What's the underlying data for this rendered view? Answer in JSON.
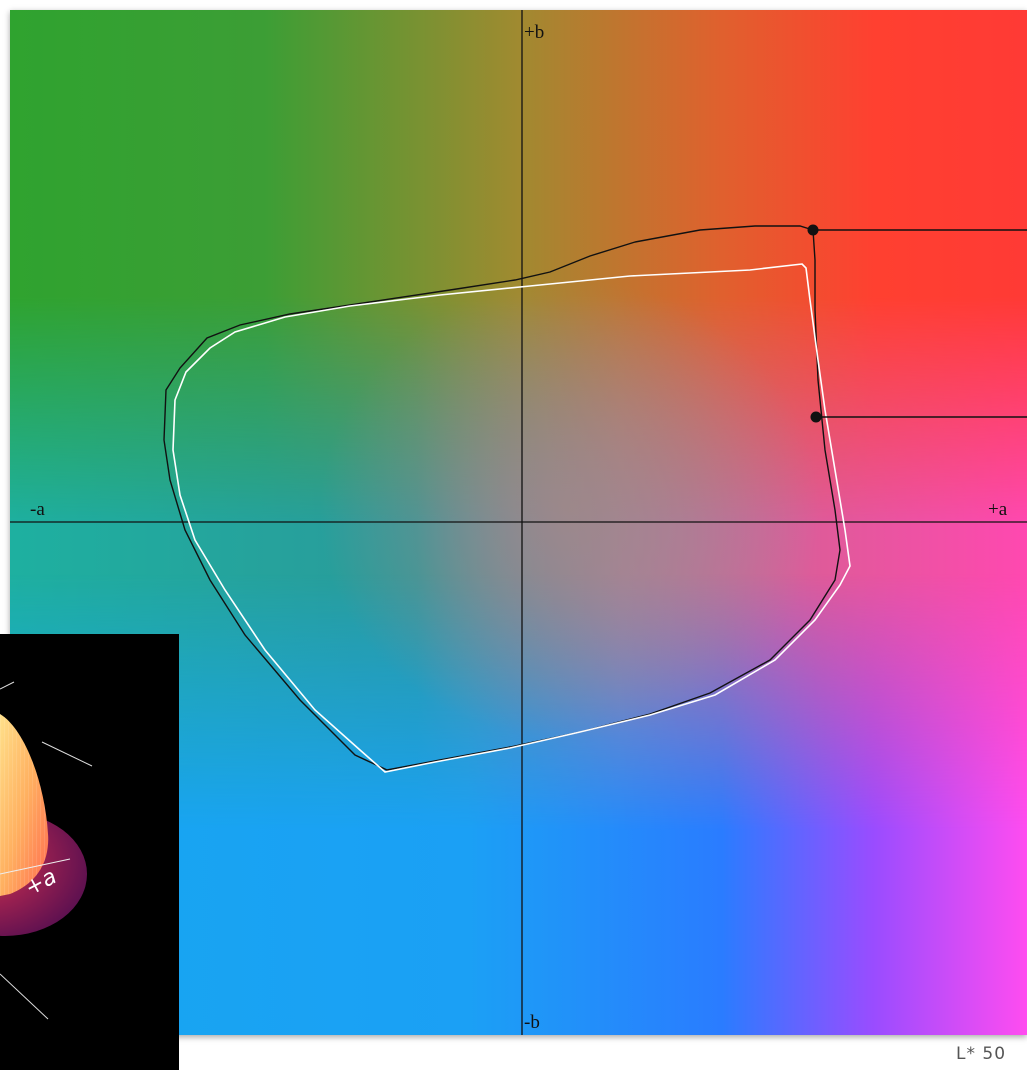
{
  "axes": {
    "plus_b": "+b",
    "minus_b": "-b",
    "minus_a": "-a",
    "plus_a": "+a"
  },
  "inset": {
    "axis_label": "+a"
  },
  "lightness_label": "L* 50",
  "colors": {
    "outer_gamut": "#111111",
    "inner_gamut": "#ffffff",
    "axes": "#111111"
  }
}
